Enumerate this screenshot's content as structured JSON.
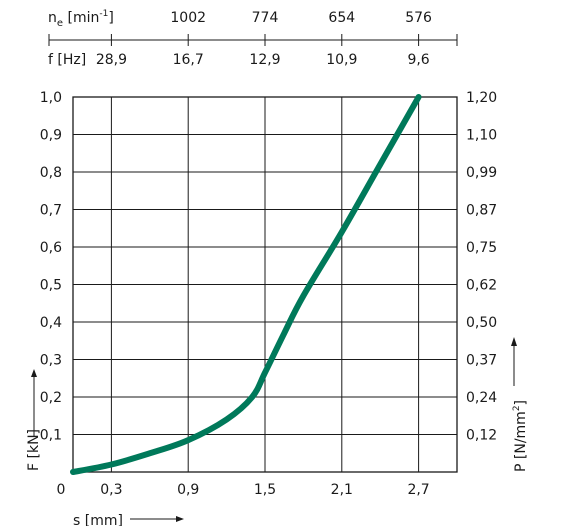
{
  "chart_data": {
    "type": "line",
    "xlabel": "s [mm]",
    "ylabel": "F [kN]",
    "y2label_base": "P [N/mm",
    "y2label_sup": "2",
    "y2label_end": "]",
    "xlim": [
      0,
      3.0
    ],
    "ylim": [
      0,
      1.0
    ],
    "x_ticks": [
      "0,3",
      "0,9",
      "1,5",
      "2,1",
      "2,7"
    ],
    "x_tick_values": [
      0.3,
      0.9,
      1.5,
      2.1,
      2.7
    ],
    "x_zero_label": "0",
    "y_ticks": [
      "0,1",
      "0,2",
      "0,3",
      "0,4",
      "0,5",
      "0,6",
      "0,7",
      "0,8",
      "0,9",
      "1,0"
    ],
    "y_tick_values": [
      0.1,
      0.2,
      0.3,
      0.4,
      0.5,
      0.6,
      0.7,
      0.8,
      0.9,
      1.0
    ],
    "y2_ticks": [
      "0,12",
      "0,24",
      "0,37",
      "0,50",
      "0,62",
      "0,75",
      "0,87",
      "0,99",
      "1,10",
      "1,20"
    ],
    "grid": true,
    "line_color": "#00795a",
    "series": [
      {
        "x": [
          0.0,
          0.3,
          0.6,
          0.9,
          1.2,
          1.4,
          1.5,
          1.65,
          1.8,
          2.1,
          2.4,
          2.7
        ],
        "y": [
          0.0,
          0.02,
          0.05,
          0.085,
          0.14,
          0.2,
          0.265,
          0.37,
          0.47,
          0.64,
          0.82,
          1.0
        ]
      }
    ],
    "top_scales": {
      "ne_label_base": "n",
      "ne_label_sub": "e",
      "ne_label_mid": " [min",
      "ne_label_sup": "-1",
      "ne_label_end": "]",
      "ne_values": [
        "1002",
        "774",
        "654",
        "576"
      ],
      "f_label": "f [Hz]",
      "f_values": [
        "28,9",
        "16,7",
        "12,9",
        "10,9",
        "9,6"
      ]
    }
  }
}
